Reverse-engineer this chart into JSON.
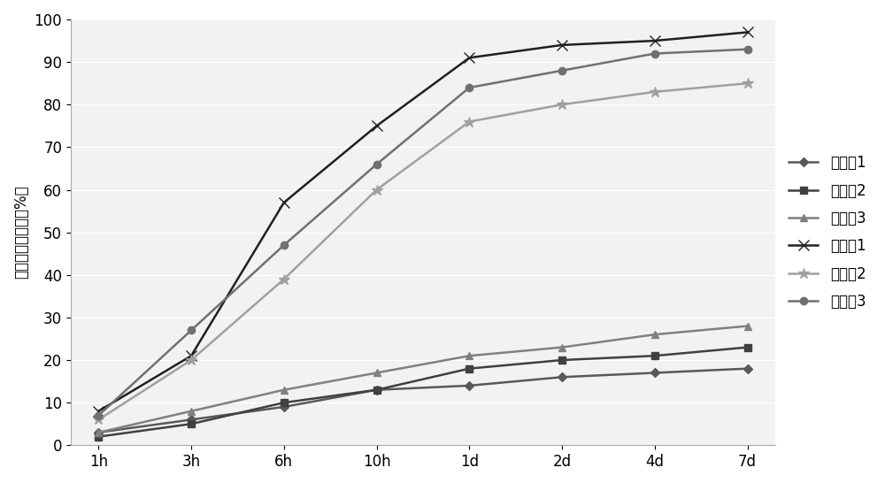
{
  "x_labels": [
    "1h",
    "3h",
    "6h",
    "10h",
    "1d",
    "2d",
    "4d",
    "7d"
  ],
  "x_values": [
    0,
    1,
    2,
    3,
    4,
    5,
    6,
    7
  ],
  "series": [
    {
      "name": "实施例1",
      "values": [
        3,
        6,
        9,
        13,
        14,
        16,
        17,
        18
      ],
      "color": "#595959",
      "marker": "D",
      "markersize": 5,
      "markerfacecolor": "#595959",
      "linestyle": "-",
      "linewidth": 1.8
    },
    {
      "name": "实施例2",
      "values": [
        2,
        5,
        10,
        13,
        18,
        20,
        21,
        23
      ],
      "color": "#404040",
      "marker": "s",
      "markersize": 6,
      "markerfacecolor": "#404040",
      "linestyle": "-",
      "linewidth": 1.8
    },
    {
      "name": "实施例3",
      "values": [
        3,
        8,
        13,
        17,
        21,
        23,
        26,
        28
      ],
      "color": "#808080",
      "marker": "^",
      "markersize": 6,
      "markerfacecolor": "#808080",
      "linestyle": "-",
      "linewidth": 1.8
    },
    {
      "name": "对比例1",
      "values": [
        8,
        21,
        57,
        75,
        91,
        94,
        95,
        97
      ],
      "color": "#202020",
      "marker": "x",
      "markersize": 8,
      "markerfacecolor": "#202020",
      "linestyle": "-",
      "linewidth": 1.8
    },
    {
      "name": "对比例2",
      "values": [
        6,
        20,
        39,
        60,
        76,
        80,
        83,
        85
      ],
      "color": "#a0a0a0",
      "marker": "*",
      "markersize": 9,
      "markerfacecolor": "#a0a0a0",
      "linestyle": "-",
      "linewidth": 1.8
    },
    {
      "name": "对比例3",
      "values": [
        7,
        27,
        47,
        66,
        84,
        88,
        92,
        93
      ],
      "color": "#707070",
      "marker": "o",
      "markersize": 6,
      "markerfacecolor": "#707070",
      "linestyle": "-",
      "linewidth": 1.8
    }
  ],
  "ylabel": "药物累积释放率（%）",
  "ylim": [
    0,
    100
  ],
  "yticks": [
    0,
    10,
    20,
    30,
    40,
    50,
    60,
    70,
    80,
    90,
    100
  ],
  "grid": true,
  "background_color": "#ffffff",
  "axis_fontsize": 12,
  "legend_fontsize": 12,
  "plot_bg_color": "#f2f2f2",
  "grid_color": "#ffffff",
  "legend_labelspacing": 0.8
}
